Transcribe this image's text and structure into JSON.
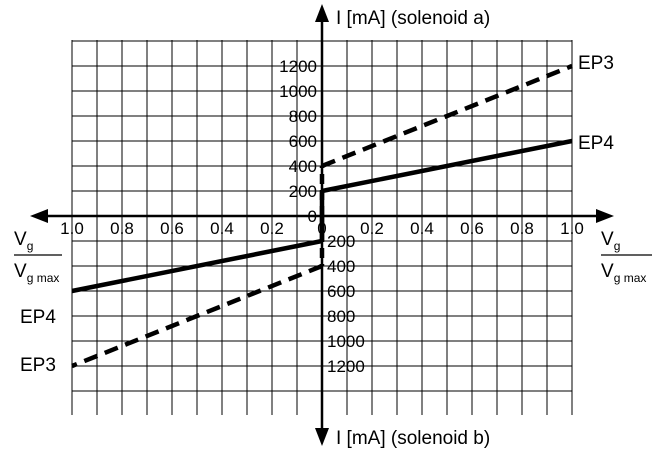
{
  "chart_data": {
    "type": "line",
    "x_axis": {
      "ticks_left": [
        "1.0",
        "0.8",
        "0.6",
        "0.4",
        "0.2",
        "0"
      ],
      "ticks_right": [
        "0",
        "0.2",
        "0.4",
        "0.6",
        "0.8",
        "1.0"
      ],
      "label": {
        "num": "V",
        "num_sub": "g",
        "den": "V",
        "den_sub": "g max"
      },
      "xlim": [
        -1.0,
        1.0
      ]
    },
    "y_axis": {
      "top_label": "I [mA]  (solenoid a)",
      "bottom_label": "I [mA]  (solenoid b)",
      "ticks_up": [
        "0",
        "200",
        "400",
        "600",
        "800",
        "1000",
        "1200"
      ],
      "ticks_down": [
        "200",
        "400",
        "600",
        "800",
        "1000",
        "1200"
      ],
      "ylim": [
        -1400,
        1400
      ]
    },
    "series": [
      {
        "name": "EP3",
        "style": "dashed",
        "points_a": [
          [
            0,
            400
          ],
          [
            1.0,
            1200
          ]
        ],
        "points_b": [
          [
            0,
            -400
          ],
          [
            -1.0,
            -1200
          ]
        ]
      },
      {
        "name": "EP4",
        "style": "solid",
        "points_a": [
          [
            0,
            200
          ],
          [
            1.0,
            600
          ]
        ],
        "points_b": [
          [
            0,
            -200
          ],
          [
            -1.0,
            -600
          ]
        ]
      }
    ],
    "labels": {
      "ep3_right": "EP3",
      "ep4_right": "EP4",
      "ep4_left": "EP4",
      "ep3_left": "EP3"
    },
    "grid": true
  }
}
